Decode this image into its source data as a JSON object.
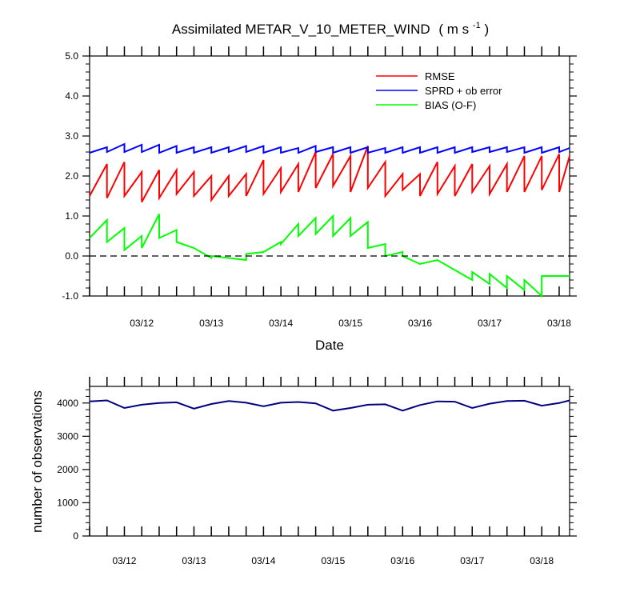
{
  "chart_data": [
    {
      "type": "line",
      "title": "Assimilated METAR_V_10_METER_WIND",
      "title_units": "( m s",
      "title_units_sup": "-1",
      "title_units_end": " )",
      "xlabel": "Date",
      "ylabel": "",
      "xlim": [
        0,
        6.9
      ],
      "ylim": [
        -1.0,
        5.0
      ],
      "x_tick_labels": [
        "03/12",
        "03/13",
        "03/14",
        "03/15",
        "03/16",
        "03/17",
        "03/18"
      ],
      "x_tick_values": [
        0.75,
        1.75,
        2.75,
        3.75,
        4.75,
        5.75,
        6.75
      ],
      "y_ticks": [
        -1.0,
        0.0,
        1.0,
        2.0,
        3.0,
        4.0,
        5.0
      ],
      "y_tick_labels": [
        "-1.0",
        "0.0",
        "1.0",
        "2.0",
        "3.0",
        "4.0",
        "5.0"
      ],
      "zero_line": true,
      "legend_position": "top-right",
      "series": [
        {
          "name": "RMSE",
          "color": "#ff0000",
          "x": [
            0,
            0.25,
            0.25,
            0.5,
            0.5,
            0.75,
            0.75,
            1,
            1,
            1.25,
            1.25,
            1.5,
            1.5,
            1.75,
            1.75,
            2,
            2,
            2.25,
            2.25,
            2.5,
            2.5,
            2.75,
            2.75,
            3,
            3,
            3.25,
            3.25,
            3.5,
            3.5,
            3.75,
            3.75,
            4,
            4,
            4.25,
            4.25,
            4.5,
            4.5,
            4.75,
            4.75,
            5,
            5,
            5.25,
            5.25,
            5.5,
            5.5,
            5.75,
            5.75,
            6,
            6,
            6.25,
            6.25,
            6.5,
            6.5,
            6.75,
            6.75,
            6.9
          ],
          "y": [
            1.5,
            2.3,
            1.45,
            2.35,
            1.5,
            2.1,
            1.35,
            2.15,
            1.45,
            2.15,
            1.55,
            2.1,
            1.5,
            2.0,
            1.4,
            2.0,
            1.5,
            2.05,
            1.5,
            2.4,
            1.55,
            2.2,
            1.6,
            2.3,
            1.6,
            2.6,
            1.7,
            2.55,
            1.75,
            2.5,
            1.6,
            2.75,
            1.7,
            2.35,
            1.5,
            2.05,
            1.65,
            2.05,
            1.5,
            2.35,
            1.55,
            2.25,
            1.5,
            2.3,
            1.6,
            2.25,
            1.55,
            2.3,
            1.6,
            2.5,
            1.6,
            2.5,
            1.65,
            2.55,
            1.6,
            2.5
          ]
        },
        {
          "name": "SPRD + ob error",
          "color": "#0000ff",
          "x": [
            0,
            0.25,
            0.25,
            0.5,
            0.5,
            0.75,
            0.75,
            1,
            1,
            1.25,
            1.25,
            1.5,
            1.5,
            1.75,
            1.75,
            2,
            2,
            2.25,
            2.25,
            2.5,
            2.5,
            2.75,
            2.75,
            3,
            3,
            3.25,
            3.25,
            3.5,
            3.5,
            3.75,
            3.75,
            4,
            4,
            4.25,
            4.25,
            4.5,
            4.5,
            4.75,
            4.75,
            5,
            5,
            5.25,
            5.25,
            5.5,
            5.5,
            5.75,
            5.75,
            6,
            6,
            6.25,
            6.25,
            6.5,
            6.5,
            6.75,
            6.75,
            6.9
          ],
          "y": [
            2.58,
            2.72,
            2.6,
            2.8,
            2.6,
            2.78,
            2.6,
            2.78,
            2.58,
            2.75,
            2.58,
            2.72,
            2.58,
            2.72,
            2.58,
            2.72,
            2.6,
            2.75,
            2.6,
            2.75,
            2.58,
            2.72,
            2.58,
            2.7,
            2.58,
            2.75,
            2.6,
            2.72,
            2.58,
            2.72,
            2.58,
            2.72,
            2.58,
            2.7,
            2.58,
            2.72,
            2.58,
            2.72,
            2.58,
            2.72,
            2.58,
            2.72,
            2.58,
            2.72,
            2.6,
            2.72,
            2.6,
            2.72,
            2.6,
            2.72,
            2.58,
            2.72,
            2.58,
            2.72,
            2.6,
            2.7
          ]
        },
        {
          "name": "BIAS (O-F)",
          "color": "#00ff00",
          "x": [
            0,
            0.25,
            0.25,
            0.5,
            0.5,
            0.75,
            0.75,
            1,
            1,
            1.25,
            1.25,
            1.5,
            1.5,
            1.75,
            1.75,
            2,
            2,
            2.25,
            2.25,
            2.5,
            2.5,
            2.75,
            2.75,
            3,
            3,
            3.25,
            3.25,
            3.5,
            3.5,
            3.75,
            3.75,
            4,
            4,
            4.25,
            4.25,
            4.5,
            4.5,
            4.75,
            4.75,
            5,
            5,
            5.25,
            5.25,
            5.5,
            5.5,
            5.75,
            5.75,
            6,
            6,
            6.25,
            6.25,
            6.5,
            6.5,
            6.75,
            6.75,
            6.9
          ],
          "y": [
            0.45,
            0.9,
            0.35,
            0.7,
            0.15,
            0.5,
            0.2,
            1.05,
            0.45,
            0.65,
            0.35,
            0.2,
            0.2,
            -0.05,
            0.0,
            -0.05,
            -0.05,
            -0.1,
            0.05,
            0.1,
            0.1,
            0.35,
            0.3,
            0.8,
            0.5,
            0.95,
            0.55,
            1.0,
            0.5,
            0.95,
            0.5,
            0.85,
            0.2,
            0.3,
            0.0,
            0.1,
            0.0,
            -0.2,
            -0.2,
            -0.1,
            -0.1,
            -0.35,
            -0.35,
            -0.6,
            -0.4,
            -0.7,
            -0.45,
            -0.8,
            -0.5,
            -0.85,
            -0.6,
            -1.0,
            -0.5,
            -0.5,
            -0.5,
            -0.5
          ]
        }
      ]
    },
    {
      "type": "line",
      "title": "",
      "xlabel": "",
      "ylabel": "number of observations",
      "xlim": [
        0,
        6.9
      ],
      "ylim": [
        0,
        4500
      ],
      "x_tick_labels": [
        "03/12",
        "03/13",
        "03/14",
        "03/15",
        "03/16",
        "03/17",
        "03/18"
      ],
      "x_tick_values": [
        0.5,
        1.5,
        2.5,
        3.5,
        4.5,
        5.5,
        6.5
      ],
      "y_ticks": [
        0,
        1000,
        2000,
        3000,
        4000
      ],
      "y_tick_labels": [
        "0",
        "1000",
        "2000",
        "3000",
        "4000"
      ],
      "series": [
        {
          "name": "",
          "color": "#000080",
          "x": [
            0,
            0.25,
            0.5,
            0.75,
            1,
            1.25,
            1.5,
            1.75,
            2,
            2.25,
            2.5,
            2.75,
            3,
            3.25,
            3.5,
            3.75,
            4,
            4.25,
            4.5,
            4.75,
            5,
            5.25,
            5.5,
            5.75,
            6,
            6.25,
            6.5,
            6.75,
            6.9
          ],
          "y": [
            4050,
            4080,
            3850,
            3950,
            4000,
            4020,
            3830,
            3970,
            4060,
            4010,
            3900,
            4010,
            4030,
            3990,
            3770,
            3850,
            3950,
            3960,
            3770,
            3940,
            4050,
            4040,
            3850,
            3980,
            4060,
            4070,
            3920,
            4000,
            4080
          ]
        }
      ]
    }
  ]
}
